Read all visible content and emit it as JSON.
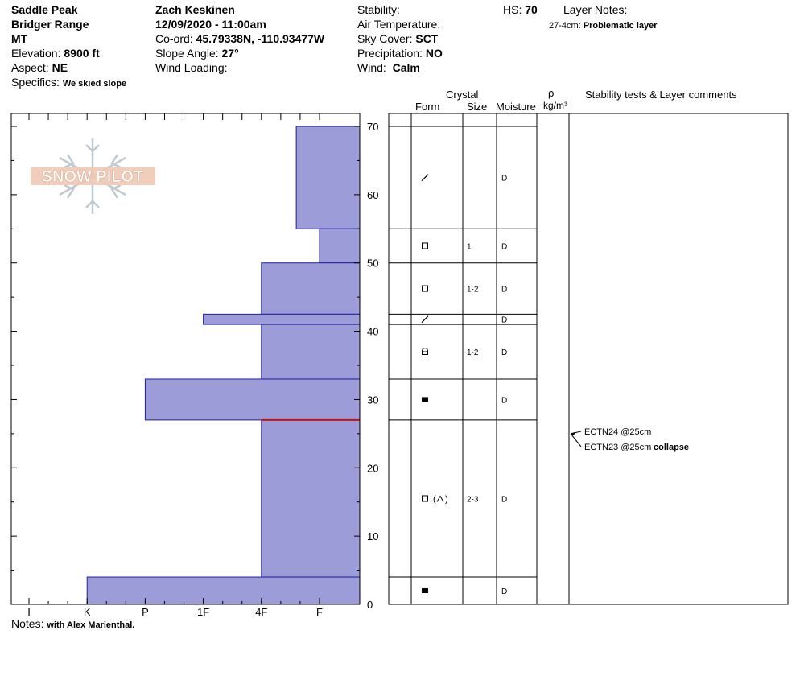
{
  "header": {
    "location": "Saddle Peak",
    "range": "Bridger Range",
    "state": "MT",
    "elevation_label": "Elevation:",
    "elevation_value": "8900 ft",
    "aspect_label": "Aspect:",
    "aspect_value": "NE",
    "specifics_label": "Specifics:",
    "specifics_value": "We skied slope",
    "observer": "Zach Keskinen",
    "datetime": "12/09/2020 - 11:00am",
    "coord_label": "Co-ord:",
    "coord_value": "45.79338N, -110.93477W",
    "slope_label": "Slope Angle:",
    "slope_value": "27°",
    "wind_loading_label": "Wind Loading:",
    "stability_label": "Stability:",
    "air_temp_label": "Air Temperature:",
    "sky_label": "Sky Cover:",
    "sky_value": "SCT",
    "precip_label": "Precipitation:",
    "precip_value": "NO",
    "wind_label": "Wind:",
    "wind_value": "Calm",
    "hs_label": "HS:",
    "hs_value": "70",
    "layer_notes_label": "Layer Notes:",
    "layer_note_range": "27-4cm:",
    "layer_note_text": "Problematic layer"
  },
  "logo_text": "SNOW PILOT",
  "table_headers": {
    "crystal": "Crystal",
    "form": "Form",
    "size": "Size",
    "moisture": "Moisture",
    "rho": "ρ",
    "density_unit": "kg/m³",
    "comments": "Stability tests & Layer comments"
  },
  "notes_label": "Notes:",
  "notes_value": "with Alex Marienthal.",
  "chart_data": {
    "type": "bar",
    "title": "",
    "xlabel": "",
    "ylabel": "",
    "x_categories": [
      "I",
      "K",
      "P",
      "1F",
      "4F",
      "F"
    ],
    "hardness_scale": {
      "I": 6,
      "K": 5,
      "P": 4,
      "1F": 3,
      "4F": 2,
      "F": 1
    },
    "ylim": [
      0,
      70
    ],
    "y_ticks": [
      0,
      10,
      20,
      30,
      40,
      50,
      60,
      70
    ],
    "bar_color": "#9c9cd8",
    "bar_edge": "#1e1e9a",
    "failure_line_color": "#d01010",
    "failure_depth": 27,
    "layers": [
      {
        "top": 70,
        "bottom": 55,
        "hardness": 1.4,
        "form": "slash",
        "size": "",
        "moisture": "D"
      },
      {
        "top": 55,
        "bottom": 50,
        "hardness": 1.0,
        "form": "square",
        "size": "1",
        "moisture": "D"
      },
      {
        "top": 50,
        "bottom": 42.5,
        "hardness": 2.0,
        "form": "square",
        "size": "1-2",
        "moisture": "D"
      },
      {
        "top": 42.5,
        "bottom": 41,
        "hardness": 3.0,
        "form": "slash",
        "size": "",
        "moisture": "D"
      },
      {
        "top": 41,
        "bottom": 33,
        "hardness": 2.0,
        "form": "square-rounded",
        "size": "1-2",
        "moisture": "D"
      },
      {
        "top": 33,
        "bottom": 27,
        "hardness": 4.0,
        "form": "filled-square",
        "size": "",
        "moisture": "D"
      },
      {
        "top": 27,
        "bottom": 4,
        "hardness": 2.0,
        "form": "square-chevron",
        "size": "2-3",
        "moisture": "D"
      },
      {
        "top": 4,
        "bottom": 0,
        "hardness": 5.0,
        "form": "filled-square",
        "size": "",
        "moisture": "D"
      }
    ],
    "tests": [
      {
        "depth": 25,
        "label": "ECTN24 @25cm",
        "comment": ""
      },
      {
        "depth": 25,
        "label": "ECTN23 @25cm",
        "comment": "collapse"
      }
    ]
  }
}
